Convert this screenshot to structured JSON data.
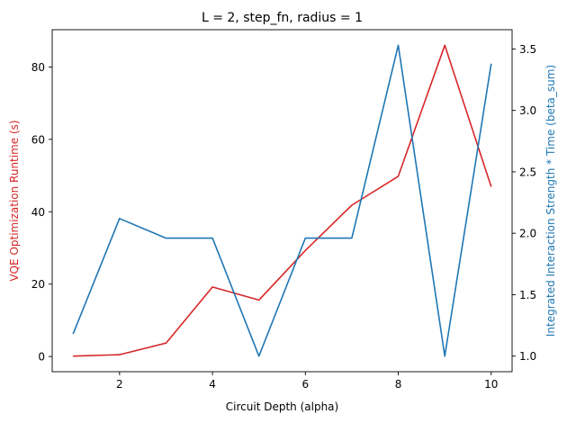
{
  "chart_data": {
    "type": "line",
    "title": "L = 2, step_fn, radius = 1",
    "xlabel": "Circuit Depth (alpha)",
    "ylabel_left": "VQE Optimization Runtime (s)",
    "ylabel_right": "Integrated Interaction Strength * Time (beta_sum)",
    "x": [
      1,
      2,
      3,
      4,
      5,
      6,
      7,
      8,
      9,
      10
    ],
    "xlim": [
      0.55,
      10.45
    ],
    "xticks": [
      2,
      4,
      6,
      8,
      10
    ],
    "series": [
      {
        "axis": "left",
        "color": "#d62728",
        "values": [
          0.1,
          0.5,
          3.7,
          19.2,
          15.6,
          29.3,
          41.8,
          49.8,
          86.0,
          46.9
        ]
      },
      {
        "axis": "right",
        "color": "#1f77b4",
        "values": [
          1.18,
          2.12,
          1.96,
          1.96,
          1.0,
          1.96,
          1.96,
          3.53,
          1.0,
          3.38
        ]
      }
    ],
    "ylim_left": [
      -4.2,
      90.3
    ],
    "yticks_left": [
      0,
      20,
      40,
      60,
      80
    ],
    "ylim_right": [
      0.873,
      3.657
    ],
    "yticks_right": [
      1.0,
      1.5,
      2.0,
      2.5,
      3.0,
      3.5
    ],
    "ytick_labels_right": [
      "1.0",
      "1.5",
      "2.0",
      "2.5",
      "3.0",
      "3.5"
    ],
    "left_axis_color": "#d62728",
    "right_axis_color": "#1f77b4",
    "grid": false,
    "legend": "none"
  }
}
